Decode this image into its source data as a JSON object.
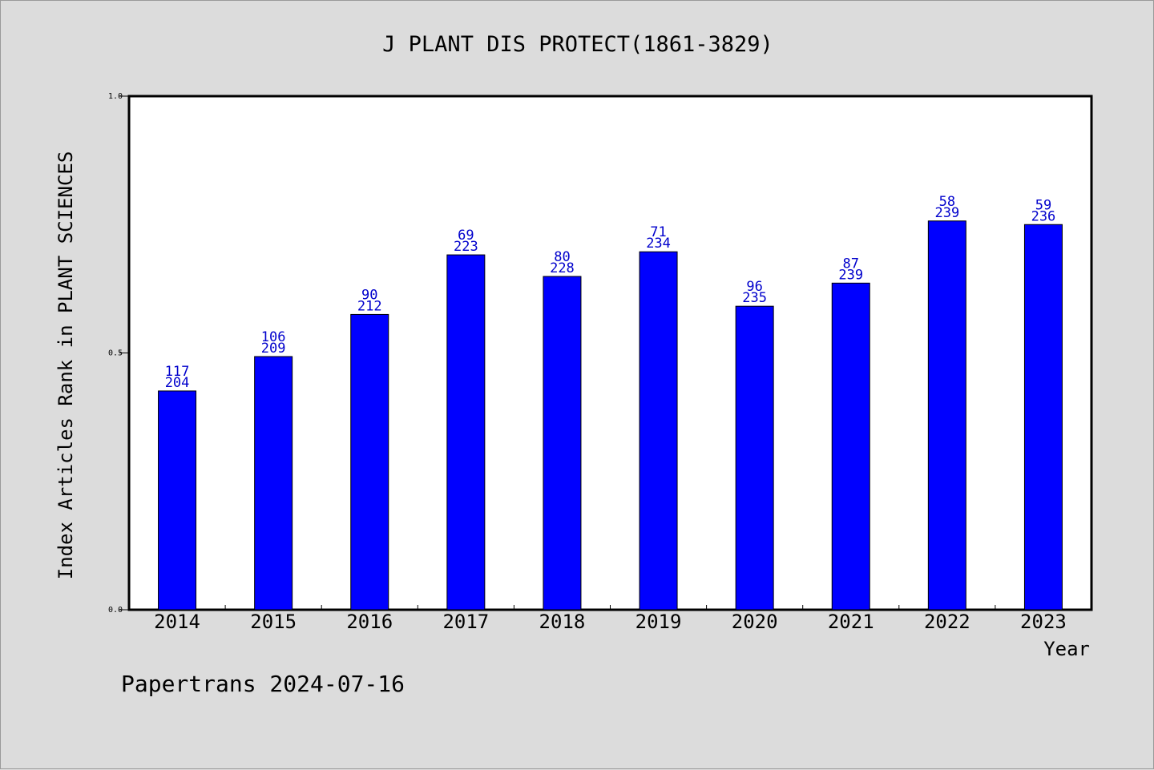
{
  "chart_data": {
    "type": "bar",
    "title": "J PLANT DIS PROTECT(1861-3829)",
    "xlabel": "Year",
    "ylabel": "Index Articles Rank in PLANT SCIENCES",
    "ylim": [
      0.0,
      1.0
    ],
    "yticks": [
      "0.0",
      "0.5",
      "1.0"
    ],
    "ytick_values": [
      0.0,
      0.5,
      1.0
    ],
    "categories": [
      "2014",
      "2015",
      "2016",
      "2017",
      "2018",
      "2019",
      "2020",
      "2021",
      "2022",
      "2023"
    ],
    "values": [
      0.426,
      0.493,
      0.575,
      0.691,
      0.649,
      0.697,
      0.591,
      0.636,
      0.757,
      0.75
    ],
    "ranks": [
      "117",
      "106",
      "90",
      "69",
      "80",
      "71",
      "96",
      "87",
      "58",
      "59"
    ],
    "totals": [
      "204",
      "209",
      "212",
      "223",
      "228",
      "234",
      "235",
      "239",
      "239",
      "236"
    ],
    "grid": false,
    "bar_color": "#0000ff",
    "label_color": "#0000cc"
  },
  "footer": {
    "text": "Papertrans 2024-07-16"
  }
}
